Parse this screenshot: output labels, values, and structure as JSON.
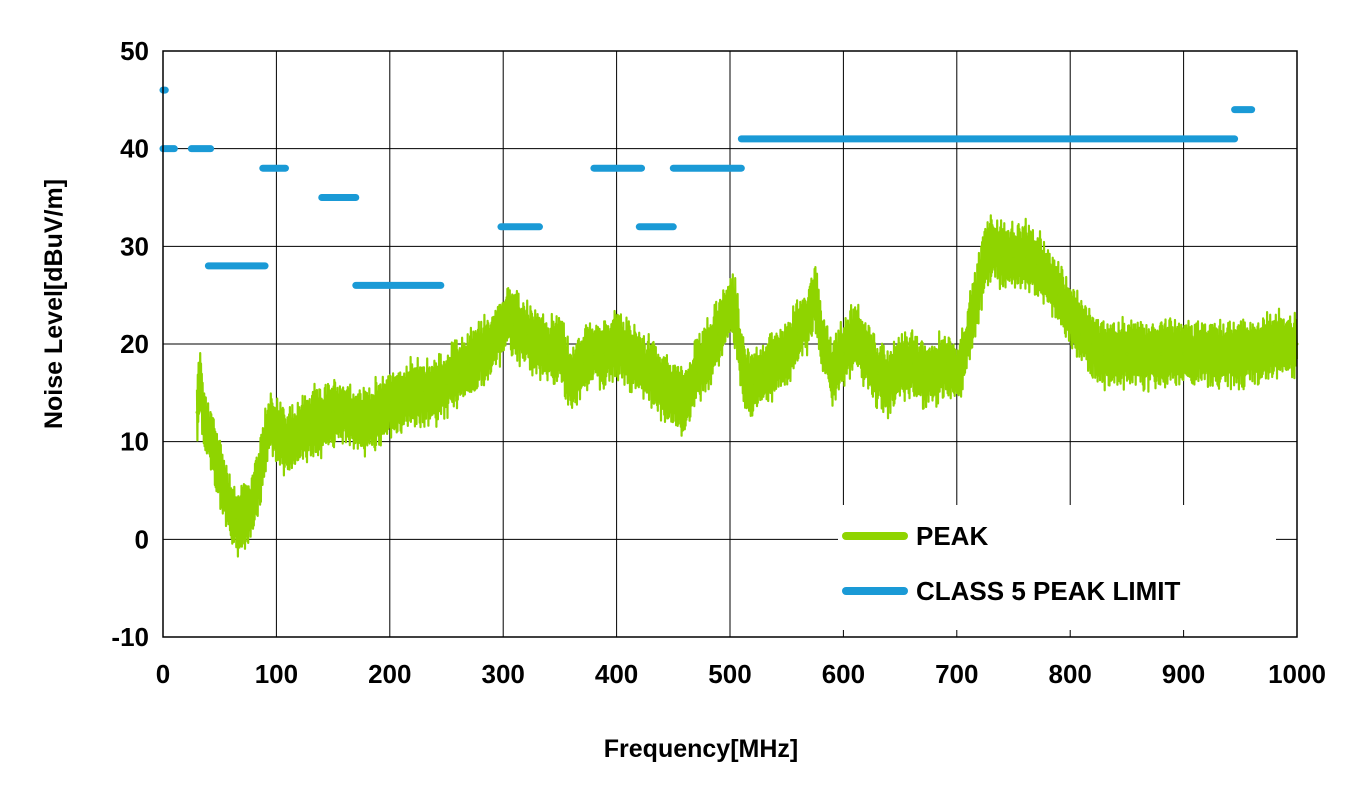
{
  "chart_data": {
    "type": "line",
    "title": "",
    "xlabel": "Frequency[MHz]",
    "ylabel": "Noise Level[dBuV/m]",
    "xlim": [
      0,
      1000
    ],
    "ylim": [
      -10,
      50
    ],
    "x_ticks": [
      0,
      100,
      200,
      300,
      400,
      500,
      600,
      700,
      800,
      900,
      1000
    ],
    "y_ticks": [
      -10,
      0,
      10,
      20,
      30,
      40,
      50
    ],
    "x_tick_labels": [
      "0",
      "100",
      "200",
      "300",
      "400",
      "500",
      "600",
      "700",
      "800",
      "900",
      "1000"
    ],
    "y_tick_labels": [
      "-10",
      "0",
      "10",
      "20",
      "30",
      "40",
      "50"
    ],
    "grid": true,
    "legend_position": "bottom-right",
    "series": [
      {
        "name": "PEAK",
        "color": "#8fd400",
        "style": "noisy-band",
        "x": [
          30,
          33,
          36,
          40,
          45,
          50,
          55,
          60,
          65,
          70,
          75,
          80,
          85,
          90,
          95,
          100,
          110,
          120,
          130,
          140,
          150,
          160,
          170,
          180,
          190,
          200,
          210,
          220,
          230,
          240,
          250,
          260,
          270,
          280,
          290,
          300,
          305,
          310,
          320,
          330,
          340,
          350,
          360,
          370,
          380,
          390,
          400,
          410,
          420,
          430,
          440,
          450,
          460,
          470,
          480,
          490,
          500,
          505,
          510,
          515,
          520,
          530,
          540,
          550,
          560,
          570,
          575,
          580,
          590,
          600,
          610,
          620,
          630,
          640,
          650,
          660,
          670,
          680,
          690,
          700,
          705,
          710,
          720,
          725,
          730,
          740,
          750,
          760,
          770,
          780,
          790,
          800,
          810,
          820,
          830,
          850,
          880,
          900,
          930,
          960,
          980,
          1000
        ],
        "values": [
          13,
          17,
          12,
          11,
          9,
          7,
          5,
          3,
          2,
          2,
          3,
          4,
          6,
          10,
          12,
          11,
          10,
          11,
          12,
          12,
          13,
          13,
          12,
          12,
          13,
          14,
          14,
          15,
          15,
          15,
          16,
          17,
          18,
          19,
          20,
          22,
          23,
          22,
          21,
          20,
          19,
          20,
          16,
          18,
          19,
          19,
          20,
          19,
          18,
          17,
          16,
          15,
          14,
          17,
          19,
          21,
          24,
          23,
          18,
          16,
          16,
          17,
          18,
          19,
          21,
          23,
          25,
          21,
          17,
          19,
          21,
          19,
          17,
          16,
          18,
          18,
          17,
          17,
          18,
          17,
          18,
          21,
          26,
          29,
          30,
          29,
          29,
          29,
          28,
          27,
          25,
          23,
          21,
          20,
          19,
          19,
          19,
          19,
          19,
          19,
          20,
          20
        ]
      },
      {
        "name": "CLASS 5 PEAK LIMIT",
        "color": "#1a9ad6",
        "style": "segments",
        "segments": [
          {
            "x": [
              0,
              2
            ],
            "value": 46
          },
          {
            "x": [
              0,
              10
            ],
            "value": 40
          },
          {
            "x": [
              25,
              42
            ],
            "value": 40
          },
          {
            "x": [
              40,
              90
            ],
            "value": 28
          },
          {
            "x": [
              88,
              108
            ],
            "value": 38
          },
          {
            "x": [
              140,
              170
            ],
            "value": 35
          },
          {
            "x": [
              170,
              245
            ],
            "value": 26
          },
          {
            "x": [
              298,
              332
            ],
            "value": 32
          },
          {
            "x": [
              380,
              422
            ],
            "value": 38
          },
          {
            "x": [
              420,
              450
            ],
            "value": 32
          },
          {
            "x": [
              450,
              510
            ],
            "value": 38
          },
          {
            "x": [
              510,
              945
            ],
            "value": 41
          },
          {
            "x": [
              945,
              960
            ],
            "value": 44
          }
        ]
      }
    ]
  }
}
